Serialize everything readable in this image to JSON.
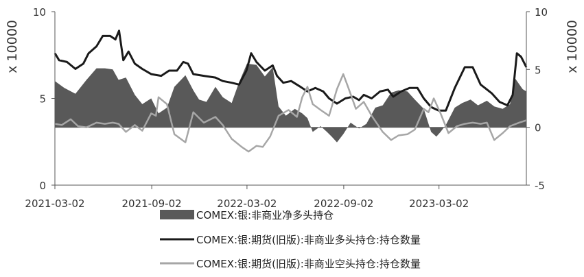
{
  "chart_data": {
    "type": "line",
    "x_tick_labels": [
      "2021-03-02",
      "2021-09-02",
      "2022-03-02",
      "2022-09-02",
      "2023-03-02"
    ],
    "x_start": "2021-03-02",
    "x_end": "2023-08-15",
    "left_axis": {
      "label": "x 10000",
      "ylim": [
        0,
        10
      ],
      "ticks": [
        "0",
        "5",
        "10"
      ]
    },
    "right_axis": {
      "label": "x 10000",
      "ylim": [
        -5,
        10
      ],
      "ticks": [
        "-5",
        "0",
        "5",
        "10"
      ]
    },
    "grid": false,
    "legend_position": "bottom",
    "series": [
      {
        "name": "COMEX:银:非商业净多头持仓",
        "type": "area",
        "axis": "right",
        "color": "#595959",
        "points": [
          [
            "2021-03-02",
            4.0
          ],
          [
            "2021-03-20",
            3.4
          ],
          [
            "2021-04-10",
            2.9
          ],
          [
            "2021-05-01",
            4.1
          ],
          [
            "2021-05-20",
            5.1
          ],
          [
            "2021-06-05",
            5.1
          ],
          [
            "2021-06-20",
            5.0
          ],
          [
            "2021-07-01",
            4.1
          ],
          [
            "2021-07-15",
            4.3
          ],
          [
            "2021-08-01",
            2.8
          ],
          [
            "2021-08-15",
            2.0
          ],
          [
            "2021-09-01",
            2.5
          ],
          [
            "2021-09-15",
            1.2
          ],
          [
            "2021-10-01",
            1.7
          ],
          [
            "2021-10-15",
            3.5
          ],
          [
            "2021-11-05",
            4.5
          ],
          [
            "2021-11-20",
            3.2
          ],
          [
            "2021-12-01",
            2.4
          ],
          [
            "2021-12-15",
            2.2
          ],
          [
            "2022-01-01",
            3.5
          ],
          [
            "2022-01-15",
            2.6
          ],
          [
            "2022-02-01",
            2.1
          ],
          [
            "2022-02-15",
            3.9
          ],
          [
            "2022-03-02",
            5.5
          ],
          [
            "2022-03-20",
            5.4
          ],
          [
            "2022-04-05",
            4.4
          ],
          [
            "2022-04-20",
            5.2
          ],
          [
            "2022-05-01",
            1.8
          ],
          [
            "2022-05-15",
            1.0
          ],
          [
            "2022-06-01",
            1.6
          ],
          [
            "2022-06-15",
            1.2
          ],
          [
            "2022-06-25",
            0.8
          ],
          [
            "2022-07-05",
            -0.4
          ],
          [
            "2022-07-20",
            0.1
          ],
          [
            "2022-08-01",
            -0.4
          ],
          [
            "2022-08-10",
            -0.8
          ],
          [
            "2022-08-20",
            -1.3
          ],
          [
            "2022-09-01",
            -0.6
          ],
          [
            "2022-09-15",
            0.4
          ],
          [
            "2022-10-01",
            -0.1
          ],
          [
            "2022-10-15",
            0.3
          ],
          [
            "2022-11-01",
            1.7
          ],
          [
            "2022-11-15",
            1.9
          ],
          [
            "2022-12-01",
            3.0
          ],
          [
            "2022-12-15",
            3.2
          ],
          [
            "2023-01-01",
            3.1
          ],
          [
            "2023-01-15",
            2.4
          ],
          [
            "2023-02-01",
            1.6
          ],
          [
            "2023-02-15",
            -0.4
          ],
          [
            "2023-02-25",
            -0.8
          ],
          [
            "2023-03-05",
            -0.4
          ],
          [
            "2023-03-15",
            0.2
          ],
          [
            "2023-04-01",
            1.7
          ],
          [
            "2023-04-15",
            2.1
          ],
          [
            "2023-05-01",
            2.4
          ],
          [
            "2023-05-15",
            1.9
          ],
          [
            "2023-06-01",
            2.3
          ],
          [
            "2023-06-15",
            1.8
          ],
          [
            "2023-07-01",
            1.6
          ],
          [
            "2023-07-15",
            2.0
          ],
          [
            "2023-07-25",
            4.2
          ],
          [
            "2023-08-08",
            3.3
          ],
          [
            "2023-08-15",
            3.1
          ]
        ]
      },
      {
        "name": "COMEX:银:期货(旧版):非商业多头持仓:持仓数量",
        "type": "line",
        "axis": "left",
        "color": "#1a1a1a",
        "points": [
          [
            "2021-03-02",
            7.6
          ],
          [
            "2021-03-10",
            7.2
          ],
          [
            "2021-03-25",
            7.1
          ],
          [
            "2021-04-10",
            6.7
          ],
          [
            "2021-04-25",
            7.0
          ],
          [
            "2021-05-05",
            7.6
          ],
          [
            "2021-05-20",
            8.0
          ],
          [
            "2021-06-01",
            8.6
          ],
          [
            "2021-06-15",
            8.6
          ],
          [
            "2021-06-25",
            8.4
          ],
          [
            "2021-07-02",
            8.9
          ],
          [
            "2021-07-10",
            7.2
          ],
          [
            "2021-07-20",
            7.7
          ],
          [
            "2021-08-01",
            7.0
          ],
          [
            "2021-08-15",
            6.7
          ],
          [
            "2021-09-01",
            6.4
          ],
          [
            "2021-09-20",
            6.3
          ],
          [
            "2021-10-05",
            6.6
          ],
          [
            "2021-10-20",
            6.6
          ],
          [
            "2021-11-01",
            7.1
          ],
          [
            "2021-11-10",
            7.0
          ],
          [
            "2021-11-20",
            6.4
          ],
          [
            "2021-12-10",
            6.3
          ],
          [
            "2022-01-01",
            6.2
          ],
          [
            "2022-01-15",
            6.0
          ],
          [
            "2022-02-01",
            5.9
          ],
          [
            "2022-02-15",
            5.8
          ],
          [
            "2022-03-01",
            6.6
          ],
          [
            "2022-03-10",
            7.6
          ],
          [
            "2022-03-20",
            7.1
          ],
          [
            "2022-04-05",
            6.6
          ],
          [
            "2022-04-20",
            6.9
          ],
          [
            "2022-04-28",
            6.3
          ],
          [
            "2022-05-10",
            5.9
          ],
          [
            "2022-05-25",
            6.0
          ],
          [
            "2022-06-10",
            5.7
          ],
          [
            "2022-06-25",
            5.4
          ],
          [
            "2022-07-10",
            5.6
          ],
          [
            "2022-07-25",
            5.4
          ],
          [
            "2022-08-05",
            5.0
          ],
          [
            "2022-08-20",
            4.7
          ],
          [
            "2022-09-05",
            5.0
          ],
          [
            "2022-09-20",
            5.1
          ],
          [
            "2022-10-01",
            4.9
          ],
          [
            "2022-10-10",
            5.2
          ],
          [
            "2022-10-25",
            5.0
          ],
          [
            "2022-11-10",
            5.4
          ],
          [
            "2022-11-25",
            5.5
          ],
          [
            "2022-12-05",
            5.1
          ],
          [
            "2022-12-20",
            5.4
          ],
          [
            "2023-01-05",
            5.6
          ],
          [
            "2023-01-20",
            5.6
          ],
          [
            "2023-02-01",
            5.0
          ],
          [
            "2023-02-15",
            4.5
          ],
          [
            "2023-03-01",
            4.3
          ],
          [
            "2023-03-15",
            4.3
          ],
          [
            "2023-04-01",
            5.6
          ],
          [
            "2023-04-20",
            6.8
          ],
          [
            "2023-05-05",
            6.8
          ],
          [
            "2023-05-20",
            5.8
          ],
          [
            "2023-06-10",
            5.3
          ],
          [
            "2023-06-25",
            4.8
          ],
          [
            "2023-07-10",
            4.6
          ],
          [
            "2023-07-20",
            5.2
          ],
          [
            "2023-07-28",
            7.6
          ],
          [
            "2023-08-05",
            7.4
          ],
          [
            "2023-08-15",
            6.8
          ]
        ]
      },
      {
        "name": "COMEX:银:期货(旧版):非商业空头持仓:持仓数量",
        "type": "line",
        "axis": "right",
        "color": "#a6a6a6",
        "points": [
          [
            "2021-03-02",
            0.3
          ],
          [
            "2021-03-15",
            0.2
          ],
          [
            "2021-04-01",
            0.7
          ],
          [
            "2021-04-15",
            0.1
          ],
          [
            "2021-05-01",
            0.0
          ],
          [
            "2021-05-20",
            0.4
          ],
          [
            "2021-06-05",
            0.3
          ],
          [
            "2021-06-20",
            0.4
          ],
          [
            "2021-07-01",
            0.3
          ],
          [
            "2021-07-15",
            -0.4
          ],
          [
            "2021-08-01",
            0.2
          ],
          [
            "2021-08-15",
            -0.3
          ],
          [
            "2021-09-01",
            1.2
          ],
          [
            "2021-09-10",
            1.0
          ],
          [
            "2021-09-15",
            2.6
          ],
          [
            "2021-10-01",
            2.0
          ],
          [
            "2021-10-15",
            -0.6
          ],
          [
            "2021-11-05",
            -1.3
          ],
          [
            "2021-11-20",
            1.3
          ],
          [
            "2021-12-10",
            0.4
          ],
          [
            "2022-01-01",
            0.9
          ],
          [
            "2022-01-15",
            0.2
          ],
          [
            "2022-02-01",
            -1.0
          ],
          [
            "2022-02-20",
            -1.7
          ],
          [
            "2022-03-05",
            -2.1
          ],
          [
            "2022-03-20",
            -1.6
          ],
          [
            "2022-04-01",
            -1.7
          ],
          [
            "2022-04-15",
            -0.8
          ],
          [
            "2022-05-01",
            1.0
          ],
          [
            "2022-05-20",
            1.5
          ],
          [
            "2022-06-05",
            0.9
          ],
          [
            "2022-06-15",
            2.6
          ],
          [
            "2022-06-25",
            3.5
          ],
          [
            "2022-07-05",
            2.0
          ],
          [
            "2022-07-20",
            1.5
          ],
          [
            "2022-08-05",
            1.0
          ],
          [
            "2022-08-20",
            3.3
          ],
          [
            "2022-09-01",
            4.6
          ],
          [
            "2022-09-10",
            3.5
          ],
          [
            "2022-09-25",
            1.6
          ],
          [
            "2022-10-10",
            2.2
          ],
          [
            "2022-10-25",
            1.0
          ],
          [
            "2022-11-15",
            -0.4
          ],
          [
            "2022-12-01",
            -1.1
          ],
          [
            "2022-12-15",
            -0.7
          ],
          [
            "2023-01-01",
            -0.6
          ],
          [
            "2023-01-15",
            -0.2
          ],
          [
            "2023-02-01",
            1.6
          ],
          [
            "2023-02-10",
            1.3
          ],
          [
            "2023-02-20",
            2.5
          ],
          [
            "2023-03-05",
            1.2
          ],
          [
            "2023-03-20",
            -0.5
          ],
          [
            "2023-04-05",
            0.1
          ],
          [
            "2023-04-20",
            0.3
          ],
          [
            "2023-05-05",
            0.4
          ],
          [
            "2023-05-20",
            0.3
          ],
          [
            "2023-06-01",
            0.4
          ],
          [
            "2023-06-15",
            -1.1
          ],
          [
            "2023-07-01",
            -0.5
          ],
          [
            "2023-07-15",
            0.1
          ],
          [
            "2023-08-01",
            0.4
          ],
          [
            "2023-08-15",
            0.6
          ]
        ]
      }
    ]
  }
}
